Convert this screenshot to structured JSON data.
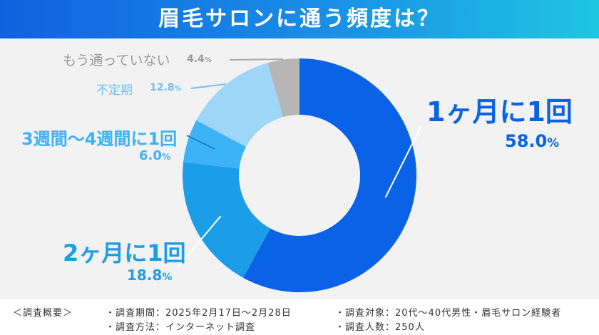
{
  "title": "眉毛サロンに通う頻度は？",
  "chart_data": {
    "type": "pie",
    "subtype": "donut",
    "categories": [
      "1ヶ月に1回",
      "2ヶ月に1回",
      "3週間〜4週間に1回",
      "不定期",
      "もう通っていない"
    ],
    "values": [
      58.0,
      18.8,
      6.0,
      12.8,
      4.4
    ],
    "value_labels": [
      "58.0",
      "18.8",
      "6.0",
      "12.8",
      "4.4"
    ],
    "unit": "%",
    "colors": [
      "#0a62e6",
      "#1c9de8",
      "#3cb2f7",
      "#9ed6f8",
      "#b6b6b6"
    ],
    "label_colors": [
      "#0a62e6",
      "#1c9de8",
      "#3cb2f7",
      "#6cc0f0",
      "#9a9a9a"
    ],
    "start": "top",
    "direction": "clockwise"
  },
  "footer": {
    "heading": "＜調査概要＞",
    "period": "・調査期間：2025年2月17日〜2月28日",
    "target": "・調査対象：20代〜40代男性・眉毛サロン経験者",
    "method": "・調査方法：インターネット調査",
    "count": "・調査人数：250人"
  }
}
